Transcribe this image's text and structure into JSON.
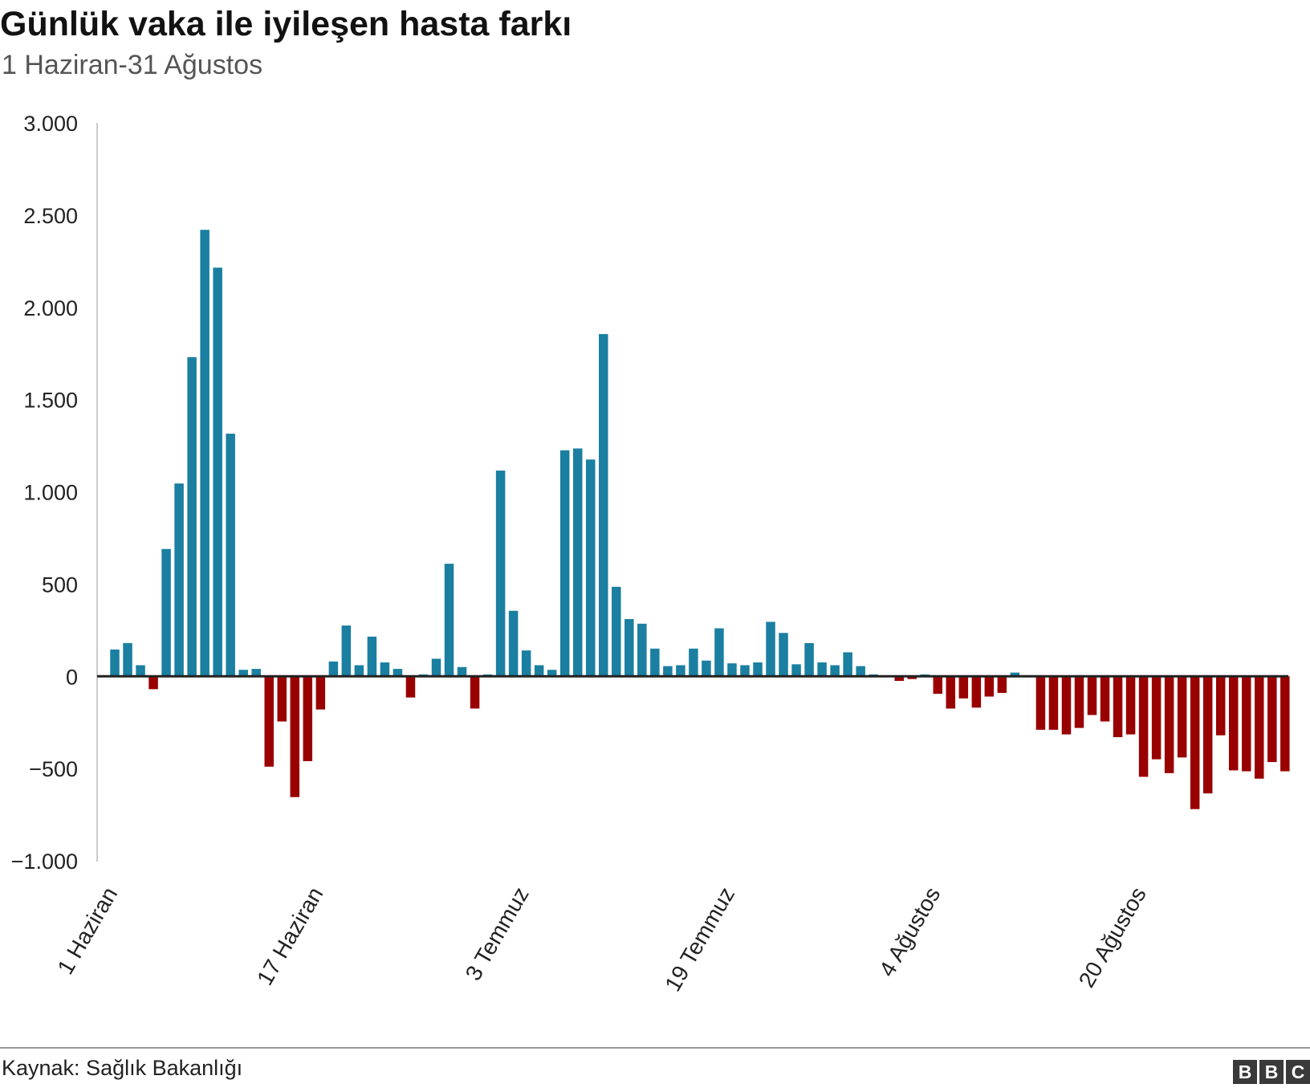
{
  "title": "Günlük vaka ile iyileşen hasta farkı",
  "subtitle": "1 Haziran-31 Ağustos",
  "source": "Kaynak: Sağlık Bakanlığı",
  "logo": [
    "B",
    "B",
    "C"
  ],
  "colors": {
    "positive": "#1a7fa0",
    "negative": "#990000",
    "axis": "#222222",
    "grid": "#cccccc"
  },
  "chart_data": {
    "type": "bar",
    "title": "Günlük vaka ile iyileşen hasta farkı",
    "subtitle": "1 Haziran-31 Ağustos",
    "xlabel": "",
    "ylabel": "",
    "ylim": [
      -1000,
      3000
    ],
    "yticks": [
      3000,
      2500,
      2000,
      1500,
      1000,
      500,
      0,
      -500,
      -1000
    ],
    "ytick_labels": [
      "3.000",
      "2.500",
      "2.000",
      "1.500",
      "1.000",
      "500",
      "0",
      "−500",
      "−1.000"
    ],
    "x_tick_labels": [
      {
        "index": 0,
        "label": "1 Haziran"
      },
      {
        "index": 16,
        "label": "17 Haziran"
      },
      {
        "index": 32,
        "label": "3 Temmuz"
      },
      {
        "index": 48,
        "label": "19 Temmuz"
      },
      {
        "index": 64,
        "label": "4 Ağustos"
      },
      {
        "index": 80,
        "label": "20 Ağustos"
      }
    ],
    "grid": false,
    "legend": "none",
    "values": [
      145,
      180,
      60,
      -70,
      690,
      1045,
      1730,
      2420,
      2215,
      1315,
      35,
      40,
      -490,
      -245,
      -655,
      -460,
      -180,
      80,
      275,
      60,
      215,
      75,
      40,
      -115,
      10,
      95,
      610,
      50,
      -175,
      10,
      1115,
      355,
      140,
      60,
      35,
      1225,
      1235,
      1175,
      1855,
      485,
      310,
      285,
      150,
      55,
      60,
      150,
      85,
      260,
      70,
      60,
      75,
      295,
      235,
      65,
      180,
      75,
      60,
      130,
      55,
      10,
      5,
      -25,
      -15,
      10,
      -95,
      -175,
      -120,
      -170,
      -110,
      -90,
      20,
      0,
      -290,
      -290,
      -315,
      -280,
      -210,
      -245,
      -330,
      -315,
      -545,
      -450,
      -525,
      -440,
      -720,
      -635,
      -320,
      -510,
      -515,
      -555,
      -465,
      -515
    ]
  }
}
